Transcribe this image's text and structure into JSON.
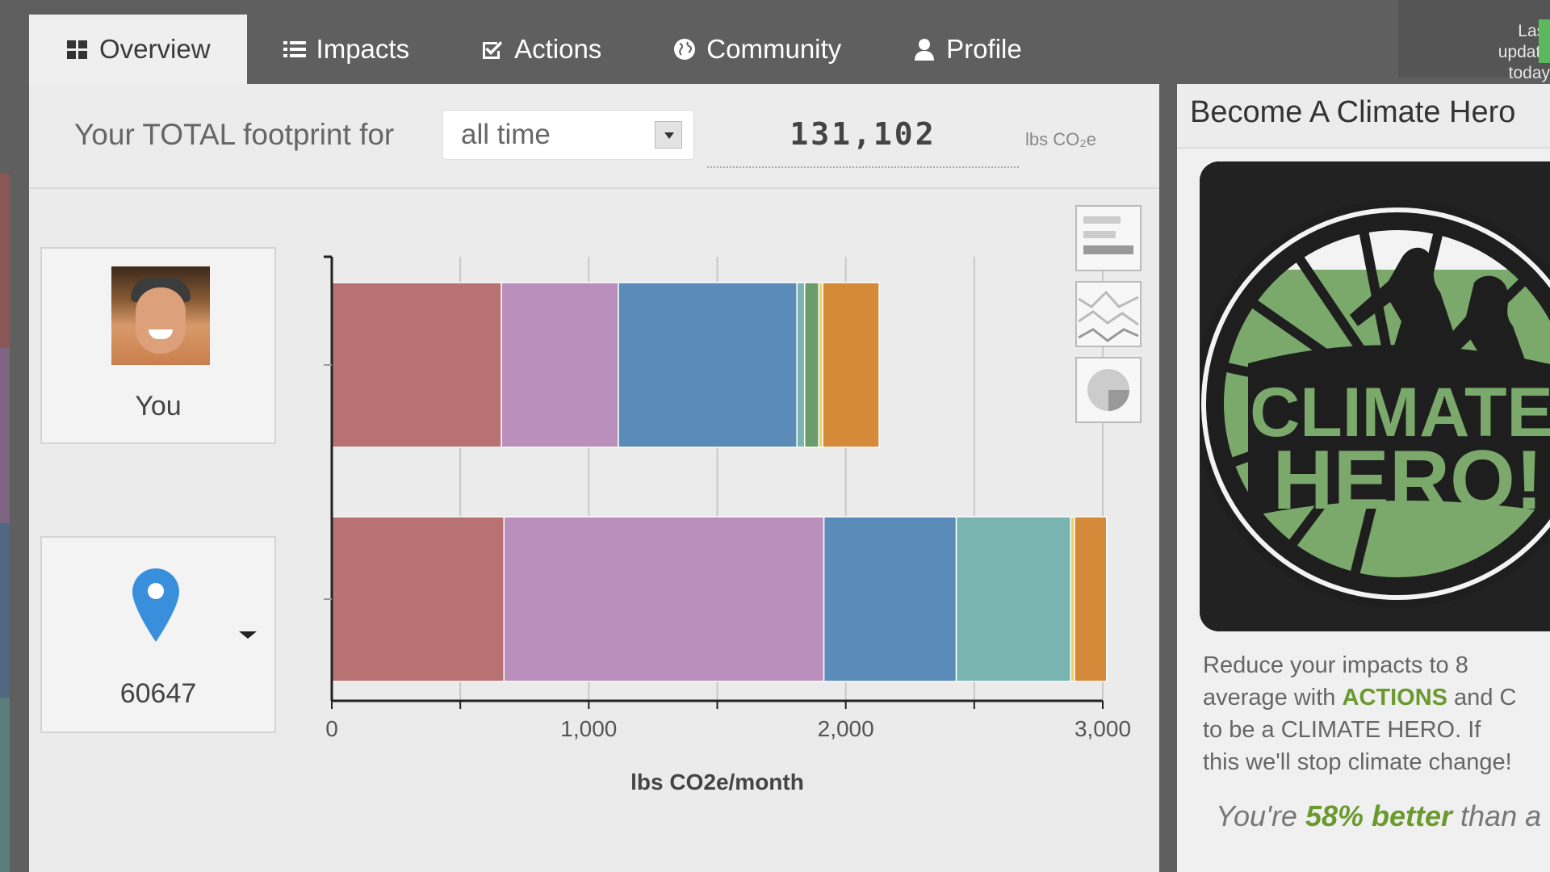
{
  "nav": {
    "tabs": [
      {
        "label": "Overview",
        "icon": "grid-icon",
        "active": true
      },
      {
        "label": "Impacts",
        "icon": "list-icon",
        "active": false
      },
      {
        "label": "Actions",
        "icon": "checkbox-icon",
        "active": false
      },
      {
        "label": "Community",
        "icon": "globe-icon",
        "active": false
      },
      {
        "label": "Profile",
        "icon": "user-icon",
        "active": false
      }
    ],
    "last_update_line1": "Last update",
    "last_update_line2": "today"
  },
  "header": {
    "lead": "Your TOTAL footprint for",
    "period_selected": "all time",
    "total": "131,102",
    "unit": "lbs CO₂e"
  },
  "cards": {
    "you_label": "You",
    "zip_label": "60647"
  },
  "chart_data": {
    "type": "bar",
    "orientation": "horizontal",
    "stacked": true,
    "categories": [
      "You",
      "60647"
    ],
    "xlabel": "lbs CO2e/month",
    "xlim": [
      0,
      3000
    ],
    "xticks": [
      0,
      1000,
      2000,
      3000
    ],
    "xtick_labels": [
      "0",
      "1,000",
      "2,000",
      "3,000"
    ],
    "grid": true,
    "series": [
      {
        "color": "#b87271",
        "values": [
          660,
          670
        ]
      },
      {
        "color": "#bb8fbc",
        "values": [
          455,
          1245
        ]
      },
      {
        "color": "#5b8bb8",
        "values": [
          695,
          515
        ]
      },
      {
        "color": "#79b4b1",
        "values": [
          30,
          445
        ]
      },
      {
        "color": "#6a9d6b",
        "values": [
          55,
          0
        ]
      },
      {
        "color": "#ecd060",
        "values": [
          15,
          15
        ]
      },
      {
        "color": "#d58a39",
        "values": [
          220,
          125
        ]
      }
    ]
  },
  "chart_types": [
    "bar-chart-icon",
    "line-chart-icon",
    "pie-chart-icon"
  ],
  "side": {
    "title": "Become A Climate Hero",
    "logo_text_1": "CLIMATE",
    "logo_text_2": "HERO!",
    "line1": "Reduce your impacts to 8",
    "line2_pre": "average with ",
    "line2_actions": "ACTIONS",
    "line2_post": " and C",
    "line3": "to be a CLIMATE HERO. If",
    "line4": "this we'll stop climate change!",
    "better_pre": "You're ",
    "better_pct": "58% better",
    "better_post": " than a"
  },
  "colors": {
    "accent_green": "#6a9a2e",
    "status_green": "#5cb85c"
  }
}
